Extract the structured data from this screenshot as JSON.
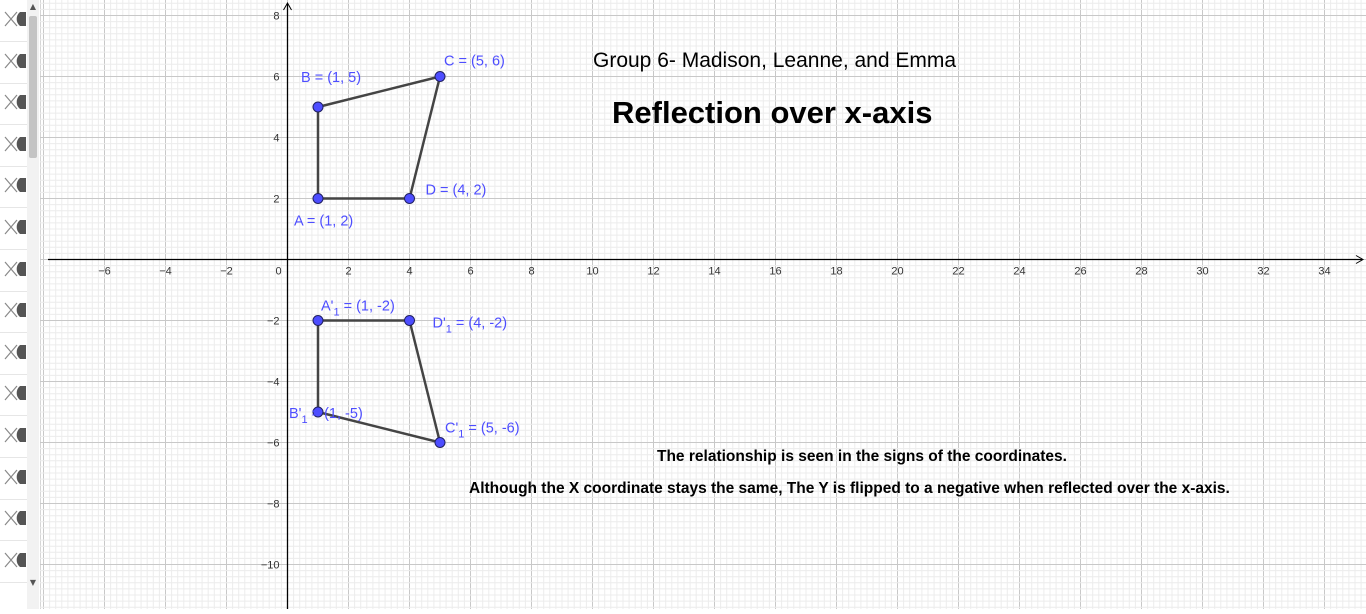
{
  "algebra_panel": {
    "rows": [
      {
        "icon": "visibility-toggle-icon"
      },
      {
        "icon": "visibility-toggle-icon"
      },
      {
        "icon": "visibility-toggle-icon"
      },
      {
        "icon": "visibility-toggle-icon"
      },
      {
        "icon": "visibility-toggle-icon"
      },
      {
        "icon": "visibility-toggle-icon"
      },
      {
        "icon": "visibility-toggle-icon"
      },
      {
        "icon": "visibility-toggle-icon"
      },
      {
        "icon": "visibility-toggle-icon"
      },
      {
        "icon": "visibility-toggle-icon"
      },
      {
        "icon": "visibility-toggle-icon"
      },
      {
        "icon": "visibility-toggle-icon"
      },
      {
        "icon": "visibility-toggle-icon"
      },
      {
        "icon": "visibility-toggle-icon"
      }
    ]
  },
  "graphics": {
    "group_title": "Group 6- Madison, Leanne, and Emma",
    "main_title": "Reflection over x-axis",
    "relationship_text": "The relationship is seen in the signs of the coordinates.",
    "explanation_text": "Although the X coordinate stays the same, The Y is flipped to a negative when reflected over the x-axis.",
    "colors": {
      "point": "#4d4dff",
      "label": "#4d4dff",
      "segment": "#444444",
      "axis": "#000000"
    },
    "axes": {
      "x_ticks": [
        "−6",
        "−4",
        "−2",
        "0",
        "2",
        "4",
        "6",
        "8",
        "10",
        "12",
        "14",
        "16",
        "18",
        "20",
        "22",
        "24",
        "26",
        "28",
        "30",
        "32",
        "34"
      ],
      "y_ticks": [
        "8",
        "6",
        "4",
        "2",
        "−2",
        "−4",
        "−6",
        "−8",
        "−10"
      ]
    },
    "points": [
      {
        "name": "A",
        "x": 1,
        "y": 2,
        "label": "A = (1, 2)"
      },
      {
        "name": "B",
        "x": 1,
        "y": 5,
        "label": "B = (1, 5)"
      },
      {
        "name": "C",
        "x": 5,
        "y": 6,
        "label": "C = (5, 6)"
      },
      {
        "name": "D",
        "x": 4,
        "y": 2,
        "label": "D = (4, 2)"
      },
      {
        "name": "A'1",
        "x": 1,
        "y": -2,
        "label_base": "A'",
        "label_sub": "1",
        "label_rest": " = (1, -2)"
      },
      {
        "name": "B'1",
        "x": 1,
        "y": -5,
        "label_base": "B'",
        "label_sub": "1",
        "label_rest": " = (1, -5)"
      },
      {
        "name": "C'1",
        "x": 5,
        "y": -6,
        "label_base": "C'",
        "label_sub": "1",
        "label_rest": " = (5, -6)"
      },
      {
        "name": "D'1",
        "x": 4,
        "y": -2,
        "label_base": "D'",
        "label_sub": "1",
        "label_rest": " = (4, -2)"
      }
    ]
  }
}
